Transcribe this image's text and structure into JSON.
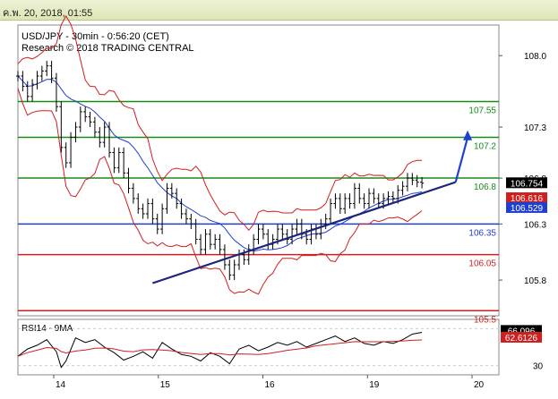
{
  "window": {
    "datetime": "ค.พ. 20, 2018, 01:55"
  },
  "chart_data": {
    "type": "line",
    "title": "USD/JPY - 30min - 0:56:20 (CET)",
    "subtitle": "Research © 2018 TRADING CENTRAL",
    "x_ticks": [
      "14",
      "15",
      "16",
      "19",
      "20"
    ],
    "y_ticks": [
      108.0,
      107.3,
      106.8,
      106.35,
      105.8
    ],
    "ylim": [
      105.45,
      108.3
    ],
    "levels": [
      {
        "label": "107.55",
        "value": 107.55,
        "color": "#1a8a1a"
      },
      {
        "label": "107.2",
        "value": 107.2,
        "color": "#1a8a1a"
      },
      {
        "label": "106.8",
        "value": 106.8,
        "color": "#1a8a1a"
      },
      {
        "label": "106.35",
        "value": 106.35,
        "color": "#1f3fd0"
      },
      {
        "label": "106.05",
        "value": 106.05,
        "color": "#d01f1f"
      },
      {
        "label": "105.5",
        "value": 105.5,
        "color": "#d01f1f"
      }
    ],
    "price_badges": [
      {
        "label": "106.754",
        "value": 106.754,
        "bg": "#000000",
        "fg": "#ffffff"
      },
      {
        "label": "106.616",
        "value": 106.616,
        "bg": "#d01f1f",
        "fg": "#ffffff"
      },
      {
        "label": "106.529",
        "value": 106.529,
        "bg": "#1f3fd0",
        "fg": "#ffffff"
      }
    ],
    "trendline": {
      "from": [
        0.28,
        105.77
      ],
      "to": [
        0.91,
        106.76
      ]
    },
    "forecast_arrow": {
      "from": [
        0.91,
        106.76
      ],
      "to": [
        0.935,
        107.25
      ]
    },
    "price_series": [
      [
        0.0,
        107.8
      ],
      [
        0.01,
        107.7
      ],
      [
        0.02,
        107.6
      ],
      [
        0.03,
        107.72
      ],
      [
        0.04,
        107.8
      ],
      [
        0.05,
        107.85
      ],
      [
        0.06,
        107.9
      ],
      [
        0.07,
        107.78
      ],
      [
        0.08,
        107.5
      ],
      [
        0.09,
        107.1
      ],
      [
        0.1,
        106.95
      ],
      [
        0.11,
        107.2
      ],
      [
        0.12,
        107.3
      ],
      [
        0.13,
        107.45
      ],
      [
        0.14,
        107.4
      ],
      [
        0.15,
        107.35
      ],
      [
        0.16,
        107.25
      ],
      [
        0.17,
        107.15
      ],
      [
        0.18,
        107.3
      ],
      [
        0.19,
        107.05
      ],
      [
        0.2,
        106.9
      ],
      [
        0.21,
        107.05
      ],
      [
        0.22,
        106.85
      ],
      [
        0.23,
        106.7
      ],
      [
        0.24,
        106.6
      ],
      [
        0.25,
        106.5
      ],
      [
        0.26,
        106.45
      ],
      [
        0.27,
        106.55
      ],
      [
        0.28,
        106.4
      ],
      [
        0.29,
        106.3
      ],
      [
        0.3,
        106.5
      ],
      [
        0.31,
        106.7
      ],
      [
        0.32,
        106.65
      ],
      [
        0.33,
        106.55
      ],
      [
        0.34,
        106.45
      ],
      [
        0.35,
        106.4
      ],
      [
        0.36,
        106.35
      ],
      [
        0.37,
        106.2
      ],
      [
        0.38,
        106.1
      ],
      [
        0.39,
        106.25
      ],
      [
        0.4,
        106.15
      ],
      [
        0.41,
        106.2
      ],
      [
        0.42,
        106.1
      ],
      [
        0.43,
        105.95
      ],
      [
        0.44,
        105.85
      ],
      [
        0.45,
        105.95
      ],
      [
        0.46,
        106.05
      ],
      [
        0.47,
        106.0
      ],
      [
        0.48,
        106.1
      ],
      [
        0.49,
        106.2
      ],
      [
        0.5,
        106.3
      ],
      [
        0.51,
        106.25
      ],
      [
        0.52,
        106.15
      ],
      [
        0.53,
        106.2
      ],
      [
        0.54,
        106.3
      ],
      [
        0.55,
        106.25
      ],
      [
        0.56,
        106.2
      ],
      [
        0.57,
        106.3
      ],
      [
        0.58,
        106.35
      ],
      [
        0.59,
        106.25
      ],
      [
        0.6,
        106.2
      ],
      [
        0.61,
        106.3
      ],
      [
        0.62,
        106.25
      ],
      [
        0.63,
        106.35
      ],
      [
        0.64,
        106.4
      ],
      [
        0.65,
        106.55
      ],
      [
        0.66,
        106.6
      ],
      [
        0.67,
        106.5
      ],
      [
        0.68,
        106.6
      ],
      [
        0.69,
        106.55
      ],
      [
        0.7,
        106.7
      ],
      [
        0.71,
        106.6
      ],
      [
        0.72,
        106.55
      ],
      [
        0.73,
        106.65
      ],
      [
        0.74,
        106.6
      ],
      [
        0.75,
        106.55
      ],
      [
        0.76,
        106.6
      ],
      [
        0.77,
        106.62
      ],
      [
        0.78,
        106.6
      ],
      [
        0.79,
        106.68
      ],
      [
        0.8,
        106.72
      ],
      [
        0.81,
        106.8
      ],
      [
        0.82,
        106.78
      ],
      [
        0.83,
        106.76
      ],
      [
        0.84,
        106.75
      ]
    ],
    "rsi": {
      "label": "RSI14 - 9MA",
      "ylim": [
        20,
        80
      ],
      "y_ticks": [
        30
      ],
      "badges": [
        {
          "label": "66.096",
          "value": 66.096,
          "bg": "#000000",
          "fg": "#ffffff"
        },
        {
          "label": "62.6126",
          "value": 62.6126,
          "bg": "#d01f1f",
          "fg": "#ffffff"
        }
      ],
      "series": [
        [
          0.0,
          40
        ],
        [
          0.02,
          48
        ],
        [
          0.04,
          52
        ],
        [
          0.06,
          58
        ],
        [
          0.08,
          45
        ],
        [
          0.09,
          28
        ],
        [
          0.1,
          35
        ],
        [
          0.12,
          60
        ],
        [
          0.14,
          55
        ],
        [
          0.16,
          58
        ],
        [
          0.18,
          50
        ],
        [
          0.2,
          44
        ],
        [
          0.22,
          36
        ],
        [
          0.24,
          40
        ],
        [
          0.26,
          45
        ],
        [
          0.28,
          38
        ],
        [
          0.3,
          55
        ],
        [
          0.32,
          48
        ],
        [
          0.34,
          42
        ],
        [
          0.36,
          40
        ],
        [
          0.38,
          35
        ],
        [
          0.4,
          44
        ],
        [
          0.42,
          40
        ],
        [
          0.44,
          32
        ],
        [
          0.46,
          48
        ],
        [
          0.48,
          52
        ],
        [
          0.5,
          46
        ],
        [
          0.52,
          50
        ],
        [
          0.54,
          55
        ],
        [
          0.56,
          52
        ],
        [
          0.58,
          56
        ],
        [
          0.6,
          50
        ],
        [
          0.62,
          54
        ],
        [
          0.64,
          58
        ],
        [
          0.66,
          62
        ],
        [
          0.68,
          56
        ],
        [
          0.7,
          60
        ],
        [
          0.72,
          54
        ],
        [
          0.74,
          52
        ],
        [
          0.76,
          56
        ],
        [
          0.78,
          54
        ],
        [
          0.8,
          58
        ],
        [
          0.82,
          64
        ],
        [
          0.84,
          66
        ]
      ]
    }
  }
}
